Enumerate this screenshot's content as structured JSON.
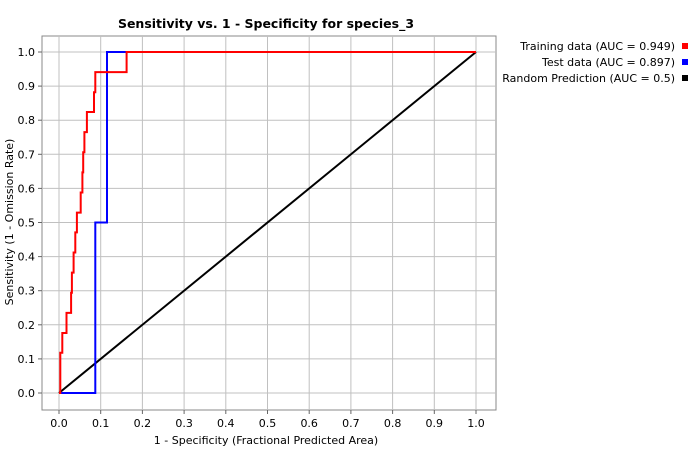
{
  "chart_data": {
    "type": "line",
    "title": "Sensitivity vs. 1 - Specificity for species_3",
    "xlabel": "1 - Specificity  (Fractional Predicted Area)",
    "ylabel": "Sensitivity  (1 - Omission Rate)",
    "xlim": [
      0,
      1
    ],
    "ylim": [
      0,
      1
    ],
    "xticks": [
      "0.0",
      "0.1",
      "0.2",
      "0.3",
      "0.4",
      "0.5",
      "0.6",
      "0.7",
      "0.8",
      "0.9",
      "1.0"
    ],
    "yticks": [
      "0.0",
      "0.1",
      "0.2",
      "0.3",
      "0.4",
      "0.5",
      "0.6",
      "0.7",
      "0.8",
      "0.9",
      "1.0"
    ],
    "grid": true,
    "legend_position": "top-right, outside plot",
    "series": [
      {
        "name": "Training data (AUC = 0.949)",
        "color": "#ff0000",
        "points": [
          [
            0.0,
            0.0
          ],
          [
            0.003,
            0.0
          ],
          [
            0.003,
            0.118
          ],
          [
            0.008,
            0.118
          ],
          [
            0.008,
            0.176
          ],
          [
            0.018,
            0.176
          ],
          [
            0.018,
            0.235
          ],
          [
            0.029,
            0.235
          ],
          [
            0.029,
            0.294
          ],
          [
            0.031,
            0.294
          ],
          [
            0.031,
            0.353
          ],
          [
            0.035,
            0.353
          ],
          [
            0.035,
            0.412
          ],
          [
            0.039,
            0.412
          ],
          [
            0.039,
            0.471
          ],
          [
            0.043,
            0.471
          ],
          [
            0.043,
            0.529
          ],
          [
            0.052,
            0.529
          ],
          [
            0.052,
            0.588
          ],
          [
            0.056,
            0.588
          ],
          [
            0.056,
            0.647
          ],
          [
            0.058,
            0.647
          ],
          [
            0.058,
            0.706
          ],
          [
            0.061,
            0.706
          ],
          [
            0.061,
            0.765
          ],
          [
            0.067,
            0.765
          ],
          [
            0.067,
            0.824
          ],
          [
            0.084,
            0.824
          ],
          [
            0.084,
            0.882
          ],
          [
            0.087,
            0.882
          ],
          [
            0.087,
            0.941
          ],
          [
            0.162,
            0.941
          ],
          [
            0.162,
            1.0
          ],
          [
            1.0,
            1.0
          ]
        ]
      },
      {
        "name": "Test data (AUC = 0.897)",
        "color": "#0000ff",
        "points": [
          [
            0.0,
            0.0
          ],
          [
            0.087,
            0.0
          ],
          [
            0.087,
            0.5
          ],
          [
            0.115,
            0.5
          ],
          [
            0.115,
            1.0
          ],
          [
            1.0,
            1.0
          ]
        ]
      },
      {
        "name": "Random Prediction (AUC = 0.5)",
        "color": "#000000",
        "points": [
          [
            0.0,
            0.0
          ],
          [
            1.0,
            1.0
          ]
        ]
      }
    ]
  }
}
